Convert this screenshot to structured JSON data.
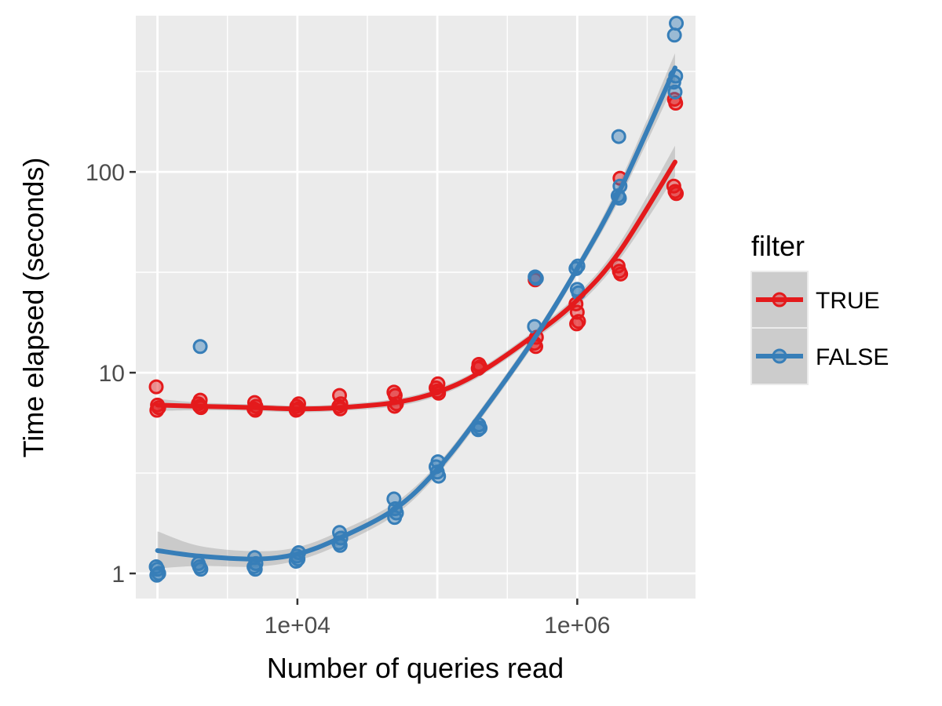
{
  "chart_data": {
    "type": "scatter",
    "title": "",
    "xlabel": "Number of queries read",
    "ylabel": "Time elapsed (seconds)",
    "x_scale": "log10",
    "y_scale": "log10",
    "xlim": [
      700,
      7000000
    ],
    "ylim": [
      0.75,
      600
    ],
    "x_ticks": [
      {
        "value": 10000,
        "label": "1e+04"
      },
      {
        "value": 1000000,
        "label": "1e+06"
      }
    ],
    "y_ticks": [
      {
        "value": 1,
        "label": "1"
      },
      {
        "value": 10,
        "label": "10"
      },
      {
        "value": 100,
        "label": "100"
      }
    ],
    "grid": true,
    "legend": {
      "title": "filter",
      "placement": "right"
    },
    "series": [
      {
        "name": "TRUE",
        "color": "#E41A1C",
        "points": [
          [
            1000,
            8.5
          ],
          [
            1000,
            6.9
          ],
          [
            1000,
            6.7
          ],
          [
            1000,
            6.5
          ],
          [
            2000,
            7.3
          ],
          [
            2000,
            7.0
          ],
          [
            2000,
            6.8
          ],
          [
            2000,
            6.7
          ],
          [
            5000,
            7.1
          ],
          [
            5000,
            6.8
          ],
          [
            5000,
            6.6
          ],
          [
            5000,
            6.5
          ],
          [
            10000,
            7.0
          ],
          [
            10000,
            6.8
          ],
          [
            10000,
            6.6
          ],
          [
            10000,
            6.5
          ],
          [
            20000,
            7.7
          ],
          [
            20000,
            7.0
          ],
          [
            20000,
            6.8
          ],
          [
            20000,
            6.6
          ],
          [
            50000,
            8.0
          ],
          [
            50000,
            7.7
          ],
          [
            50000,
            7.0
          ],
          [
            50000,
            6.8
          ],
          [
            100000,
            8.8
          ],
          [
            100000,
            8.4
          ],
          [
            100000,
            8.1
          ],
          [
            100000,
            7.9
          ],
          [
            200000,
            11.0
          ],
          [
            200000,
            10.7
          ],
          [
            200000,
            10.5
          ],
          [
            500000,
            29.0
          ],
          [
            500000,
            15.0
          ],
          [
            500000,
            14.0
          ],
          [
            500000,
            13.5
          ],
          [
            1000000,
            22.0
          ],
          [
            1000000,
            20.0
          ],
          [
            1000000,
            18.0
          ],
          [
            1000000,
            17.5
          ],
          [
            2000000,
            93.0
          ],
          [
            2000000,
            34.0
          ],
          [
            2000000,
            32.0
          ],
          [
            2000000,
            31.0
          ],
          [
            5000000,
            230.0
          ],
          [
            5000000,
            220.0
          ],
          [
            5000000,
            85.0
          ],
          [
            5000000,
            80.0
          ],
          [
            5000000,
            78.0
          ]
        ],
        "smooth": [
          [
            1000,
            6.9
          ],
          [
            2000,
            6.8
          ],
          [
            5000,
            6.7
          ],
          [
            10000,
            6.6
          ],
          [
            20000,
            6.7
          ],
          [
            50000,
            7.1
          ],
          [
            100000,
            8.0
          ],
          [
            200000,
            10.0
          ],
          [
            500000,
            15.5
          ],
          [
            1000000,
            23.0
          ],
          [
            2000000,
            40.0
          ],
          [
            5000000,
            112.0
          ]
        ],
        "band_upper": [
          [
            1000,
            7.4
          ],
          [
            2000,
            7.1
          ],
          [
            5000,
            6.95
          ],
          [
            10000,
            6.85
          ],
          [
            20000,
            6.95
          ],
          [
            50000,
            7.4
          ],
          [
            100000,
            8.35
          ],
          [
            200000,
            10.45
          ],
          [
            500000,
            16.3
          ],
          [
            1000000,
            24.5
          ],
          [
            2000000,
            44.0
          ],
          [
            5000000,
            135.0
          ]
        ],
        "band_lower": [
          [
            1000,
            6.45
          ],
          [
            2000,
            6.5
          ],
          [
            5000,
            6.45
          ],
          [
            10000,
            6.35
          ],
          [
            20000,
            6.45
          ],
          [
            50000,
            6.8
          ],
          [
            100000,
            7.65
          ],
          [
            200000,
            9.55
          ],
          [
            500000,
            14.7
          ],
          [
            1000000,
            21.5
          ],
          [
            2000000,
            36.5
          ],
          [
            5000000,
            95.0
          ]
        ]
      },
      {
        "name": "FALSE",
        "color": "#377EB8",
        "points": [
          [
            1000,
            1.08
          ],
          [
            1000,
            1.05
          ],
          [
            1000,
            1.0
          ],
          [
            1000,
            0.98
          ],
          [
            2000,
            13.5
          ],
          [
            2000,
            1.12
          ],
          [
            2000,
            1.08
          ],
          [
            2000,
            1.05
          ],
          [
            5000,
            1.2
          ],
          [
            5000,
            1.12
          ],
          [
            5000,
            1.08
          ],
          [
            5000,
            1.05
          ],
          [
            10000,
            1.27
          ],
          [
            10000,
            1.22
          ],
          [
            10000,
            1.18
          ],
          [
            10000,
            1.15
          ],
          [
            20000,
            1.6
          ],
          [
            20000,
            1.5
          ],
          [
            20000,
            1.42
          ],
          [
            20000,
            1.38
          ],
          [
            50000,
            2.35
          ],
          [
            50000,
            2.1
          ],
          [
            50000,
            2.0
          ],
          [
            50000,
            1.9
          ],
          [
            100000,
            3.6
          ],
          [
            100000,
            3.4
          ],
          [
            100000,
            3.2
          ],
          [
            100000,
            3.05
          ],
          [
            200000,
            5.5
          ],
          [
            200000,
            5.3
          ],
          [
            200000,
            5.2
          ],
          [
            500000,
            30.0
          ],
          [
            500000,
            29.5
          ],
          [
            500000,
            17.0
          ],
          [
            1000000,
            34.0
          ],
          [
            1000000,
            33.0
          ],
          [
            1000000,
            26.0
          ],
          [
            1000000,
            25.0
          ],
          [
            2000000,
            150.0
          ],
          [
            2000000,
            85.0
          ],
          [
            2000000,
            76.0
          ],
          [
            2000000,
            74.0
          ],
          [
            5000000,
            550.0
          ],
          [
            5000000,
            480.0
          ],
          [
            5000000,
            300.0
          ],
          [
            5000000,
            280.0
          ],
          [
            5000000,
            250.0
          ]
        ],
        "smooth": [
          [
            1000,
            1.3
          ],
          [
            2000,
            1.22
          ],
          [
            5000,
            1.18
          ],
          [
            10000,
            1.25
          ],
          [
            20000,
            1.5
          ],
          [
            50000,
            2.1
          ],
          [
            100000,
            3.3
          ],
          [
            200000,
            6.1
          ],
          [
            500000,
            15.0
          ],
          [
            1000000,
            33.0
          ],
          [
            2000000,
            80.0
          ],
          [
            5000000,
            330.0
          ]
        ],
        "band_upper": [
          [
            1000,
            1.62
          ],
          [
            2000,
            1.37
          ],
          [
            5000,
            1.29
          ],
          [
            10000,
            1.35
          ],
          [
            20000,
            1.62
          ],
          [
            50000,
            2.25
          ],
          [
            100000,
            3.5
          ],
          [
            200000,
            6.45
          ],
          [
            500000,
            15.9
          ],
          [
            1000000,
            35.0
          ],
          [
            2000000,
            88.0
          ],
          [
            5000000,
            390.0
          ]
        ],
        "band_lower": [
          [
            1000,
            1.06
          ],
          [
            2000,
            1.09
          ],
          [
            5000,
            1.08
          ],
          [
            10000,
            1.16
          ],
          [
            20000,
            1.39
          ],
          [
            50000,
            1.96
          ],
          [
            100000,
            3.1
          ],
          [
            200000,
            5.75
          ],
          [
            500000,
            14.1
          ],
          [
            1000000,
            31.0
          ],
          [
            2000000,
            73.0
          ],
          [
            5000000,
            280.0
          ]
        ]
      }
    ]
  }
}
